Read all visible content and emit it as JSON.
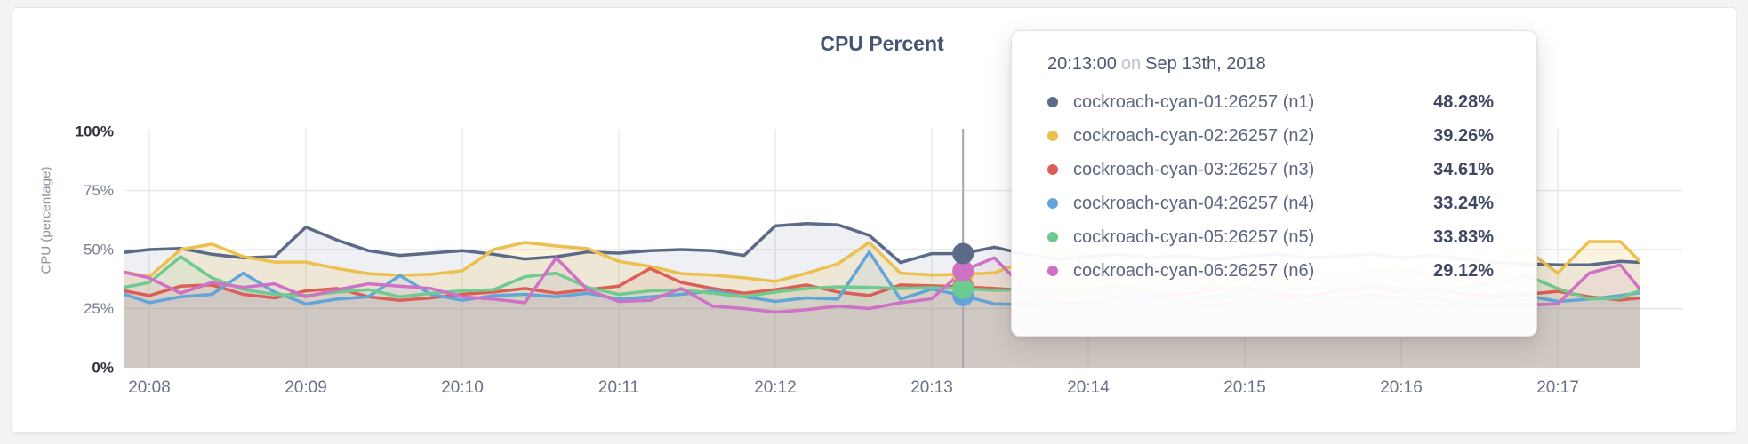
{
  "page": {
    "title": "CPU Percent"
  },
  "chart_data": {
    "type": "area",
    "title": "CPU Percent",
    "ylabel": "CPU (percentage)",
    "ylim": [
      0,
      100
    ],
    "grid": true,
    "y_ticks": [
      {
        "label": "100%",
        "value": 100,
        "emphasis": true
      },
      {
        "label": "75%",
        "value": 75,
        "emphasis": false
      },
      {
        "label": "50%",
        "value": 50,
        "emphasis": false
      },
      {
        "label": "25%",
        "value": 25,
        "emphasis": false
      },
      {
        "label": "0%",
        "value": 0,
        "emphasis": true
      }
    ],
    "x_ticks": [
      "20:08",
      "20:09",
      "20:10",
      "20:11",
      "20:12",
      "20:13",
      "20:14",
      "20:15",
      "20:16",
      "20:17"
    ],
    "x_start_min": -0.2,
    "x_step_min": 0.2,
    "series": [
      {
        "name": "cockroach-cyan-01:26257 (n1)",
        "color": "#5b6a88",
        "fill_opacity": 0.1,
        "values": [
          48.5,
          50,
          50.5,
          48,
          46.5,
          47,
          59.5,
          54,
          49.5,
          47.5,
          48.5,
          49.5,
          48,
          46,
          47,
          49,
          48.5,
          49.5,
          50,
          49.5,
          47.5,
          60,
          61,
          60.5,
          56,
          44.5,
          48.28,
          48.3,
          51,
          48,
          46,
          47,
          48,
          46.5,
          47.5,
          46,
          47,
          48,
          46.5,
          47,
          48,
          46.5,
          47.5,
          46,
          44.5,
          44,
          43.5,
          43.5,
          45,
          44.3
        ]
      },
      {
        "name": "cockroach-cyan-02:26257 (n2)",
        "color": "#ecc04f",
        "fill_opacity": 0.18,
        "values": [
          41,
          38.5,
          50,
          52.3,
          47,
          44.7,
          44.7,
          42,
          39.8,
          39.1,
          39.5,
          41,
          50,
          53,
          51.5,
          50.4,
          45,
          42.9,
          39.8,
          39.2,
          38,
          36.5,
          40,
          44,
          53,
          40,
          39.26,
          39.5,
          40.2,
          45,
          50.4,
          44,
          40,
          41.5,
          43,
          40,
          41,
          43,
          40,
          39,
          41,
          42,
          40,
          43,
          46,
          50,
          40,
          53.4,
          53.4,
          40
        ]
      },
      {
        "name": "cockroach-cyan-03:26257 (n3)",
        "color": "#dc5f57",
        "fill_opacity": 0.1,
        "values": [
          33,
          30.5,
          34.5,
          35,
          31,
          29.5,
          32.5,
          33.5,
          30,
          28.5,
          29.5,
          31,
          32,
          33.5,
          31.5,
          33,
          34.5,
          42,
          36,
          33.5,
          31.5,
          33,
          35,
          32,
          30.5,
          35,
          34.61,
          34.2,
          33.5,
          32.7,
          32.4,
          33,
          35,
          32,
          31,
          33,
          34,
          31.5,
          30,
          32.5,
          34,
          32,
          33.5,
          31,
          30.5,
          31,
          32.3,
          30,
          28.6,
          30
        ]
      },
      {
        "name": "cockroach-cyan-04:26257 (n4)",
        "color": "#62a5d9",
        "fill_opacity": 0.1,
        "values": [
          32,
          27.5,
          30,
          31,
          40,
          32,
          27,
          29,
          30,
          39,
          31,
          28.5,
          30.5,
          31,
          30,
          31.5,
          29,
          30,
          31,
          32.5,
          30,
          28,
          29.5,
          29,
          49,
          29,
          33.24,
          30.5,
          27,
          26.7,
          27,
          28,
          30,
          29,
          28,
          30.5,
          29.5,
          28,
          30,
          29,
          28.5,
          30,
          29,
          28,
          29.5,
          30.5,
          28,
          29,
          30.5,
          32.5
        ]
      },
      {
        "name": "cockroach-cyan-05:26257 (n5)",
        "color": "#6ecb8f",
        "fill_opacity": 0.1,
        "values": [
          33.5,
          36,
          47,
          38,
          33,
          31,
          30.5,
          32,
          33,
          30,
          31.5,
          32.5,
          33,
          38.5,
          40,
          34,
          31,
          32.5,
          33,
          31.5,
          30,
          32,
          33.5,
          34.2,
          34,
          33.5,
          33.83,
          33.5,
          32.7,
          33,
          32.7,
          33,
          34,
          31.5,
          33,
          35,
          33,
          32,
          34,
          33,
          35,
          33.5,
          32,
          34,
          36,
          39,
          33.5,
          29,
          29.5,
          34.5
        ]
      },
      {
        "name": "cockroach-cyan-06:26257 (n6)",
        "color": "#cf72c5",
        "fill_opacity": 0.1,
        "values": [
          41,
          38,
          31.5,
          36,
          34,
          35.5,
          30,
          33,
          35.5,
          34.5,
          33.5,
          30,
          29,
          27.5,
          46.5,
          33,
          28,
          28.5,
          33.5,
          26,
          25,
          23.5,
          24.5,
          26,
          25,
          27.5,
          29.12,
          41,
          46.5,
          33,
          28,
          27,
          29,
          31,
          28,
          26,
          28.5,
          30,
          27,
          29,
          31,
          28,
          26,
          27,
          26.5,
          26.5,
          27,
          40,
          43.5,
          27
        ]
      }
    ],
    "hover": {
      "x_min": 5.2,
      "dot_order": [
        1,
        2,
        3,
        4,
        5,
        0
      ]
    }
  },
  "tooltip": {
    "time": "20:13:00",
    "on_word": "on",
    "date": "Sep 13th, 2018",
    "rows": [
      {
        "label": "cockroach-cyan-01:26257 (n1)",
        "value": "48.28%",
        "color": "#5b6a88"
      },
      {
        "label": "cockroach-cyan-02:26257 (n2)",
        "value": "39.26%",
        "color": "#ecc04f"
      },
      {
        "label": "cockroach-cyan-03:26257 (n3)",
        "value": "34.61%",
        "color": "#dc5f57"
      },
      {
        "label": "cockroach-cyan-04:26257 (n4)",
        "value": "33.24%",
        "color": "#62a5d9"
      },
      {
        "label": "cockroach-cyan-05:26257 (n5)",
        "value": "33.83%",
        "color": "#6ecb8f"
      },
      {
        "label": "cockroach-cyan-06:26257 (n6)",
        "value": "29.12%",
        "color": "#cf72c5"
      }
    ]
  },
  "colors": {
    "grid_h": "#e7e7ea",
    "grid_v": "#eae8e4",
    "cursor": "#a6a6aa",
    "tick_dark": "#2f3239",
    "tick_gray": "#767b8d",
    "x_tick": "#6b7285"
  }
}
